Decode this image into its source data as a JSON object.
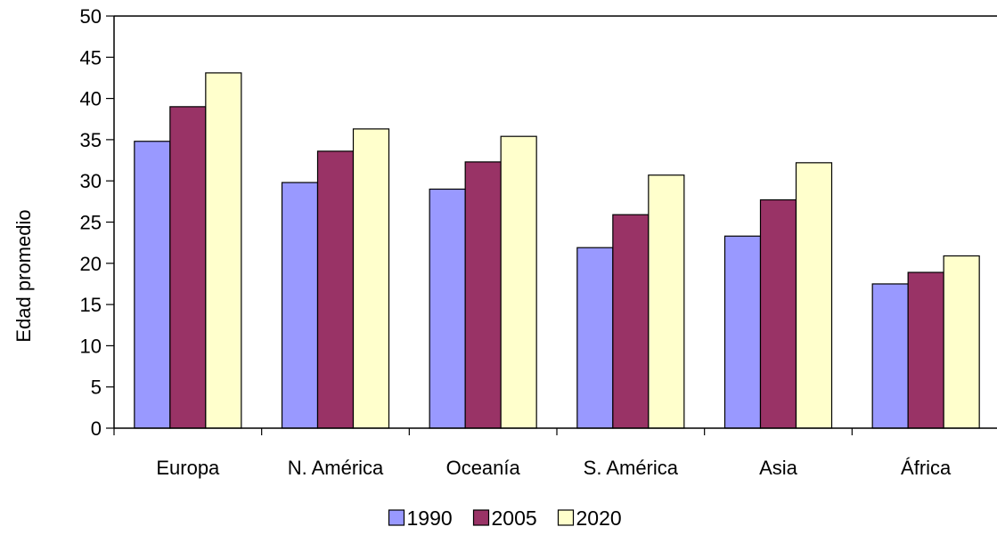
{
  "chart_data": {
    "type": "bar",
    "categories": [
      "Europa",
      "N. América",
      "Oceanía",
      "S. América",
      "Asia",
      "África"
    ],
    "series": [
      {
        "name": "1990",
        "color": "#9999ff",
        "values": [
          34.8,
          29.8,
          29.0,
          21.9,
          23.3,
          17.5
        ]
      },
      {
        "name": "2005",
        "color": "#993366",
        "values": [
          39.0,
          33.6,
          32.3,
          25.9,
          27.7,
          18.9
        ]
      },
      {
        "name": "2020",
        "color": "#ffffcc",
        "values": [
          43.1,
          36.3,
          35.4,
          30.7,
          32.2,
          20.9
        ]
      }
    ],
    "ylabel": "Edad promedio",
    "xlabel": "",
    "title": "",
    "ylim": [
      0,
      50
    ],
    "yticks": [
      0,
      5,
      10,
      15,
      20,
      25,
      30,
      35,
      40,
      45,
      50
    ],
    "grid": false,
    "legend_position": "bottom"
  }
}
